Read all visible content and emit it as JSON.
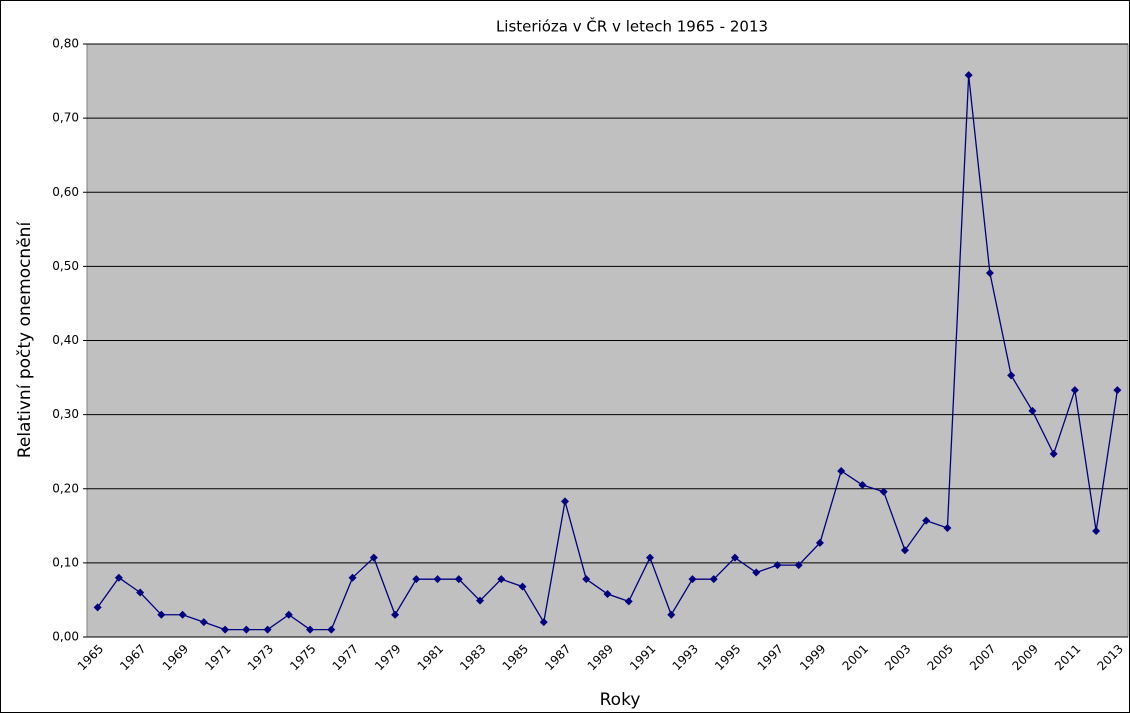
{
  "chart_data": {
    "type": "line",
    "title": "Listerióza v ČR v letech 1965 - 2013",
    "x_label": "Roky",
    "y_label": "Relativní počty onemocnění",
    "categories": [
      "1965",
      null,
      "1967",
      null,
      "1969",
      null,
      "1971",
      null,
      "1973",
      null,
      "1975",
      null,
      "1977",
      null,
      "1979",
      null,
      "1981",
      null,
      "1983",
      null,
      "1985",
      null,
      "1987",
      null,
      "1989",
      null,
      "1991",
      null,
      "1993",
      null,
      "1995",
      null,
      "1997",
      null,
      "1999",
      null,
      "2001",
      null,
      "2003",
      null,
      "2005",
      null,
      "2007",
      null,
      "2009",
      null,
      "2011",
      null,
      "2013"
    ],
    "values": [
      0.04,
      0.08,
      0.06,
      0.03,
      0.03,
      0.02,
      0.01,
      0.01,
      0.01,
      0.03,
      0.01,
      0.01,
      0.08,
      0.107,
      0.03,
      0.078,
      0.078,
      0.078,
      0.049,
      0.078,
      0.068,
      0.02,
      0.183,
      0.078,
      0.058,
      0.048,
      0.107,
      0.03,
      0.078,
      0.078,
      0.107,
      0.087,
      0.097,
      0.097,
      0.127,
      0.224,
      0.205,
      0.196,
      0.117,
      0.157,
      0.147,
      0.758,
      0.491,
      0.353,
      0.305,
      0.247,
      0.333,
      0.143,
      0.333
    ],
    "color": "#000080",
    "ylim": [
      0,
      0.8
    ],
    "yticks": [
      {
        "value": 0,
        "label": "0,00"
      },
      {
        "value": 0.1,
        "label": "0,10"
      },
      {
        "value": 0.2,
        "label": "0,20"
      },
      {
        "value": 0.3,
        "label": "0,30"
      },
      {
        "value": 0.4,
        "label": "0,40"
      },
      {
        "value": 0.5,
        "label": "0,50"
      },
      {
        "value": 0.6,
        "label": "0,60"
      },
      {
        "value": 0.7,
        "label": "0,70"
      },
      {
        "value": 0.8,
        "label": "0,80"
      }
    ],
    "grid": true
  }
}
